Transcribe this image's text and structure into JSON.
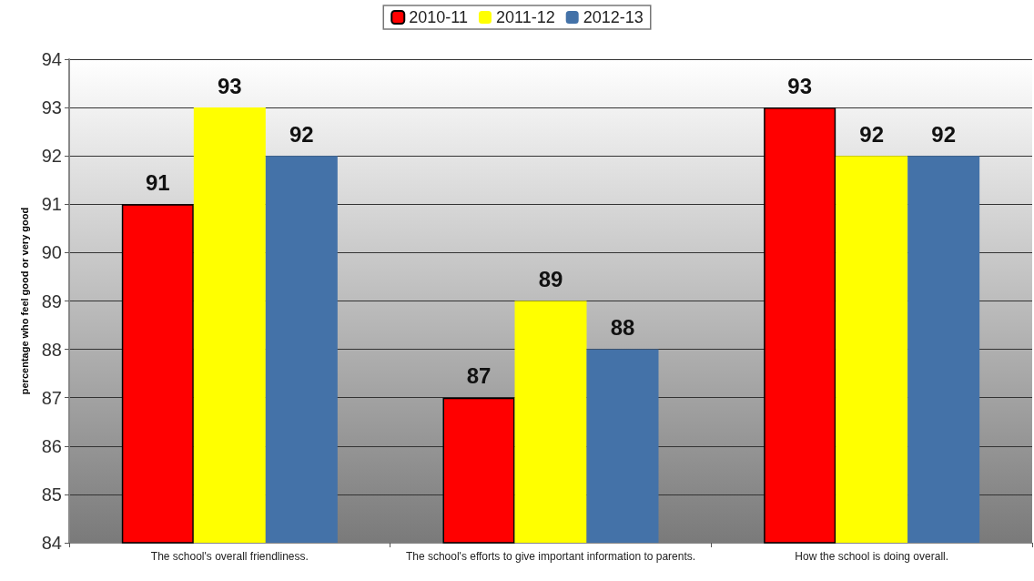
{
  "chart_data": {
    "type": "bar",
    "ylabel": "percentage who feel good or very good",
    "categories": [
      "The school's overall friendliness.",
      "The school's efforts to give important information to parents.",
      "How the school is doing overall."
    ],
    "series": [
      {
        "name": "2010-11",
        "color": "#ff0000",
        "values": [
          91,
          87,
          93
        ]
      },
      {
        "name": "2011-12",
        "color": "#ffff00",
        "values": [
          93,
          89,
          92
        ]
      },
      {
        "name": "2012-13",
        "color": "#4472a8",
        "values": [
          92,
          88,
          92
        ]
      }
    ],
    "ylim": [
      84,
      94
    ],
    "yticks": [
      84,
      85,
      86,
      87,
      88,
      89,
      90,
      91,
      92,
      93,
      94
    ],
    "grid": "y",
    "legend": "top",
    "data_labels": true
  }
}
